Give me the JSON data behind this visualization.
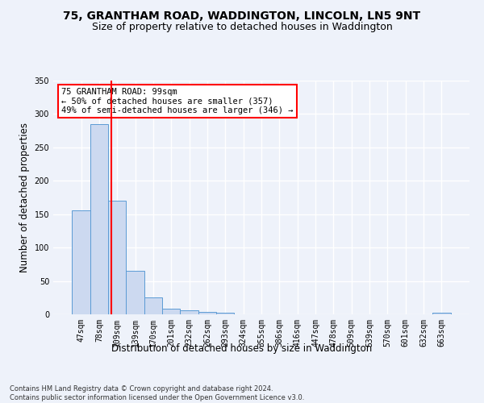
{
  "title": "75, GRANTHAM ROAD, WADDINGTON, LINCOLN, LN5 9NT",
  "subtitle": "Size of property relative to detached houses in Waddington",
  "xlabel": "Distribution of detached houses by size in Waddington",
  "ylabel": "Number of detached properties",
  "bar_labels": [
    "47sqm",
    "78sqm",
    "109sqm",
    "139sqm",
    "170sqm",
    "201sqm",
    "232sqm",
    "262sqm",
    "293sqm",
    "324sqm",
    "355sqm",
    "386sqm",
    "416sqm",
    "447sqm",
    "478sqm",
    "509sqm",
    "539sqm",
    "570sqm",
    "601sqm",
    "632sqm",
    "663sqm"
  ],
  "bar_values": [
    156,
    285,
    170,
    65,
    25,
    9,
    6,
    4,
    3,
    0,
    0,
    0,
    0,
    0,
    0,
    0,
    0,
    0,
    0,
    0,
    3
  ],
  "bar_color": "#ccd9f0",
  "bar_edge_color": "#5b9bd5",
  "ylim": [
    0,
    350
  ],
  "yticks": [
    0,
    50,
    100,
    150,
    200,
    250,
    300,
    350
  ],
  "red_line_x": 1.67,
  "annotation_text": "75 GRANTHAM ROAD: 99sqm\n← 50% of detached houses are smaller (357)\n49% of semi-detached houses are larger (346) →",
  "footnote": "Contains HM Land Registry data © Crown copyright and database right 2024.\nContains public sector information licensed under the Open Government Licence v3.0.",
  "background_color": "#eef2fa",
  "grid_color": "#ffffff",
  "title_fontsize": 10,
  "subtitle_fontsize": 9,
  "xlabel_fontsize": 8.5,
  "ylabel_fontsize": 8.5,
  "tick_fontsize": 7,
  "annot_fontsize": 7.5,
  "footnote_fontsize": 6
}
